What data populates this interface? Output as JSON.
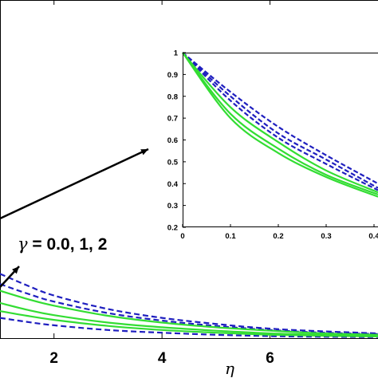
{
  "chart_data": [
    {
      "id": "main",
      "type": "line",
      "xlabel": "η",
      "ylabel": "",
      "xlim": [
        1.0,
        8.0
      ],
      "ylim": [
        0.0,
        0.5
      ],
      "x_ticks": [
        2,
        4,
        6
      ],
      "x_tick_labels": [
        "2",
        "4",
        "6"
      ],
      "grid": false,
      "series": [
        {
          "style": "dashed",
          "color": "#1f1fbf",
          "x": [
            1.0,
            1.5,
            2.0,
            3.0,
            4.0,
            5.0,
            6.0,
            7.0,
            8.0
          ],
          "y": [
            0.095,
            0.078,
            0.063,
            0.043,
            0.03,
            0.021,
            0.014,
            0.01,
            0.007
          ]
        },
        {
          "style": "dashed",
          "color": "#1f1fbf",
          "x": [
            1.0,
            1.5,
            2.0,
            3.0,
            4.0,
            5.0,
            6.0,
            7.0,
            8.0
          ],
          "y": [
            0.08,
            0.066,
            0.054,
            0.037,
            0.026,
            0.018,
            0.012,
            0.008,
            0.006
          ]
        },
        {
          "style": "dashed",
          "color": "#1f1fbf",
          "x": [
            1.0,
            1.5,
            2.0,
            3.0,
            4.0,
            5.0,
            6.0,
            7.0,
            8.0
          ],
          "y": [
            0.03,
            0.024,
            0.019,
            0.012,
            0.008,
            0.005,
            0.003,
            0.002,
            0.0015
          ]
        },
        {
          "style": "solid",
          "color": "#33dd33",
          "x": [
            1.0,
            1.5,
            2.0,
            3.0,
            4.0,
            5.0,
            6.0,
            7.0,
            8.0
          ],
          "y": [
            0.07,
            0.058,
            0.048,
            0.033,
            0.023,
            0.016,
            0.011,
            0.007,
            0.005
          ]
        },
        {
          "style": "solid",
          "color": "#33dd33",
          "x": [
            1.0,
            1.5,
            2.0,
            3.0,
            4.0,
            5.0,
            6.0,
            7.0,
            8.0
          ],
          "y": [
            0.052,
            0.042,
            0.034,
            0.023,
            0.016,
            0.011,
            0.007,
            0.005,
            0.0035
          ]
        },
        {
          "style": "solid",
          "color": "#33dd33",
          "x": [
            1.0,
            1.5,
            2.0,
            3.0,
            4.0,
            5.0,
            6.0,
            7.0,
            8.0
          ],
          "y": [
            0.04,
            0.033,
            0.027,
            0.018,
            0.012,
            0.008,
            0.005,
            0.0035,
            0.0025
          ]
        }
      ]
    },
    {
      "id": "inset",
      "type": "line",
      "xlabel": "",
      "ylabel": "",
      "xlim": [
        0,
        0.42
      ],
      "ylim": [
        0.2,
        1.0
      ],
      "x_ticks": [
        0,
        0.1,
        0.2,
        0.3,
        0.4
      ],
      "x_tick_labels": [
        "0",
        "0.1",
        "0.2",
        "0.3",
        "0.4"
      ],
      "y_ticks": [
        0.2,
        0.3,
        0.4,
        0.5,
        0.6,
        0.7,
        0.8,
        0.9,
        1.0
      ],
      "y_tick_labels": [
        "0.2",
        "0.3",
        "0.4",
        "0.5",
        "0.6",
        "0.7",
        "0.8",
        "0.9",
        "1"
      ],
      "grid": false,
      "series": [
        {
          "style": "dashed",
          "color": "#1f1fbf",
          "x": [
            0,
            0.1,
            0.2,
            0.3,
            0.42
          ],
          "y": [
            1.0,
            0.82,
            0.66,
            0.53,
            0.4
          ]
        },
        {
          "style": "dashed",
          "color": "#1f1fbf",
          "x": [
            0,
            0.1,
            0.2,
            0.3,
            0.42
          ],
          "y": [
            1.0,
            0.8,
            0.63,
            0.51,
            0.38
          ]
        },
        {
          "style": "dashed",
          "color": "#1f1fbf",
          "x": [
            0,
            0.1,
            0.2,
            0.3,
            0.42
          ],
          "y": [
            1.0,
            0.78,
            0.61,
            0.49,
            0.37
          ]
        },
        {
          "style": "solid",
          "color": "#33dd33",
          "x": [
            0,
            0.1,
            0.2,
            0.3,
            0.42
          ],
          "y": [
            1.0,
            0.75,
            0.59,
            0.46,
            0.36
          ]
        },
        {
          "style": "solid",
          "color": "#33dd33",
          "x": [
            0,
            0.1,
            0.2,
            0.3,
            0.42
          ],
          "y": [
            1.0,
            0.72,
            0.56,
            0.44,
            0.35
          ]
        },
        {
          "style": "solid",
          "color": "#33dd33",
          "x": [
            0,
            0.1,
            0.2,
            0.3,
            0.42
          ],
          "y": [
            1.0,
            0.7,
            0.54,
            0.43,
            0.34
          ]
        }
      ]
    }
  ],
  "annotation": {
    "symbol": "γ",
    "text": " = 0.0, 1, 2"
  }
}
